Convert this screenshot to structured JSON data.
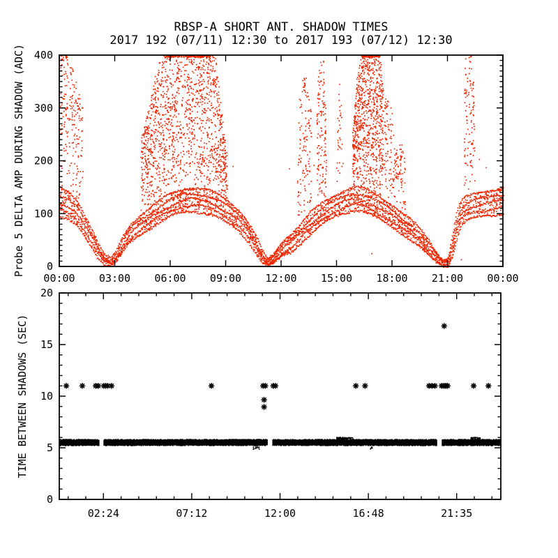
{
  "title": {
    "line1": "RBSP-A SHORT ANT. SHADOW TIMES",
    "line2": "2017 192 (07/11) 12:30 to 2017 193 (07/12) 12:30"
  },
  "colors": {
    "scatter_red": "#ee2500",
    "marker_black": "#000000",
    "axis": "#000000",
    "background": "#ffffff"
  },
  "chart_data": [
    {
      "type": "scatter",
      "panel": "top",
      "ylabel": "Probe 5 DELTA AMP DURING SHADOW (ADC)",
      "xlim_hours": [
        0,
        24
      ],
      "ylim": [
        0,
        400
      ],
      "x_major_ticks": [
        0,
        3,
        6,
        9,
        12,
        15,
        18,
        21,
        24
      ],
      "x_tick_labels": [
        "00:00",
        "03:00",
        "06:00",
        "09:00",
        "12:00",
        "15:00",
        "18:00",
        "21:00",
        "00:00"
      ],
      "y_major_ticks": [
        0,
        100,
        200,
        300,
        400
      ],
      "y_tick_labels": [
        "0",
        "100",
        "200",
        "300",
        "400"
      ],
      "y_minor_step": 10,
      "point_color": "#ee2500",
      "band_envelope": [
        [
          0.0,
          95,
          148
        ],
        [
          0.5,
          88,
          140
        ],
        [
          0.9,
          78,
          126
        ],
        [
          1.2,
          66,
          110
        ],
        [
          1.45,
          52,
          92
        ],
        [
          1.8,
          34,
          68
        ],
        [
          2.1,
          16,
          44
        ],
        [
          2.45,
          4,
          22
        ],
        [
          2.75,
          2,
          14
        ],
        [
          3.0,
          8,
          26
        ],
        [
          3.4,
          26,
          56
        ],
        [
          3.8,
          46,
          80
        ],
        [
          4.2,
          58,
          94
        ],
        [
          4.7,
          70,
          108
        ],
        [
          5.2,
          80,
          120
        ],
        [
          5.7,
          90,
          132
        ],
        [
          6.2,
          98,
          142
        ],
        [
          6.7,
          104,
          148
        ],
        [
          7.2,
          106,
          150
        ],
        [
          7.7,
          104,
          148
        ],
        [
          8.2,
          99,
          143
        ],
        [
          8.7,
          90,
          134
        ],
        [
          9.2,
          80,
          122
        ],
        [
          9.7,
          68,
          108
        ],
        [
          10.2,
          48,
          85
        ],
        [
          10.6,
          28,
          60
        ],
        [
          10.95,
          8,
          30
        ],
        [
          11.25,
          1,
          14
        ],
        [
          11.5,
          5,
          22
        ],
        [
          11.85,
          14,
          38
        ],
        [
          12.2,
          24,
          55
        ],
        [
          12.5,
          28,
          62
        ],
        [
          13.0,
          45,
          80
        ],
        [
          13.5,
          60,
          100
        ],
        [
          14.0,
          75,
          115
        ],
        [
          14.5,
          88,
          128
        ],
        [
          15.0,
          97,
          138
        ],
        [
          15.5,
          104,
          147
        ],
        [
          16.0,
          108,
          151
        ],
        [
          16.4,
          105,
          148
        ],
        [
          16.9,
          97,
          140
        ],
        [
          17.4,
          88,
          131
        ],
        [
          17.9,
          78,
          120
        ],
        [
          18.4,
          66,
          106
        ],
        [
          18.9,
          54,
          92
        ],
        [
          19.4,
          40,
          75
        ],
        [
          19.9,
          24,
          54
        ],
        [
          20.3,
          10,
          32
        ],
        [
          20.7,
          2,
          14
        ],
        [
          21.0,
          2,
          16
        ],
        [
          21.25,
          20,
          60
        ],
        [
          21.5,
          55,
          105
        ],
        [
          21.75,
          80,
          125
        ],
        [
          22.0,
          88,
          132
        ],
        [
          22.4,
          92,
          138
        ],
        [
          22.8,
          95,
          142
        ],
        [
          23.4,
          98,
          146
        ],
        [
          24.0,
          102,
          150
        ]
      ],
      "band_strands": 5,
      "band_fill_points": 1500,
      "plumes": [
        {
          "envelope": [
            [
              0.0,
              430
            ],
            [
              0.35,
              420
            ],
            [
              0.7,
              380
            ],
            [
              1.0,
              340
            ],
            [
              1.25,
              300
            ]
          ],
          "n": 210
        },
        {
          "envelope": [
            [
              4.4,
              240
            ],
            [
              4.8,
              300
            ],
            [
              5.3,
              380
            ],
            [
              5.8,
              425
            ],
            [
              6.3,
              432
            ],
            [
              7.0,
              432
            ],
            [
              7.6,
              432
            ],
            [
              8.1,
              428
            ],
            [
              8.45,
              400
            ],
            [
              8.7,
              310
            ],
            [
              9.05,
              215
            ]
          ],
          "n": 1500
        },
        {
          "envelope": [
            [
              12.85,
              250
            ],
            [
              13.05,
              350
            ],
            [
              13.35,
              368
            ],
            [
              13.6,
              290
            ]
          ],
          "n": 130
        },
        {
          "envelope": [
            [
              13.9,
              290
            ],
            [
              14.05,
              400
            ],
            [
              14.28,
              402
            ],
            [
              14.42,
              280
            ]
          ],
          "n": 140
        },
        {
          "envelope": [
            [
              14.98,
              200
            ],
            [
              15.12,
              375
            ],
            [
              15.3,
              260
            ]
          ],
          "n": 35
        },
        {
          "envelope": [
            [
              15.85,
              250
            ],
            [
              16.1,
              360
            ],
            [
              16.35,
              420
            ],
            [
              16.7,
              432
            ],
            [
              17.1,
              430
            ],
            [
              17.3,
              415
            ],
            [
              17.5,
              330
            ]
          ],
          "n": 900
        },
        {
          "envelope": [
            [
              17.55,
              320
            ],
            [
              17.85,
              320
            ],
            [
              18.15,
              245
            ],
            [
              18.35,
              195
            ]
          ],
          "n": 120
        },
        {
          "envelope": [
            [
              18.35,
              235
            ],
            [
              18.5,
              240
            ],
            [
              18.68,
              195
            ]
          ],
          "n": 45
        },
        {
          "envelope": [
            [
              21.88,
              330
            ],
            [
              21.98,
              415
            ],
            [
              22.28,
              408
            ],
            [
              22.45,
              320
            ]
          ],
          "n": 110
        }
      ],
      "stray_points": [
        [
          0.5,
          235
        ],
        [
          9.35,
          190
        ],
        [
          12.42,
          186
        ],
        [
          13.75,
          192
        ],
        [
          16.9,
          25
        ],
        [
          21.7,
          14
        ],
        [
          22.68,
          204
        ],
        [
          23.05,
          188
        ]
      ]
    },
    {
      "type": "scatter",
      "panel": "bottom",
      "ylabel": "TIME BETWEEN SHADOWS (SEC)",
      "xlim_hours": [
        0,
        24
      ],
      "ylim": [
        0,
        20
      ],
      "x_major_ticks": [
        2.4,
        7.2,
        12.0,
        16.8,
        21.6
      ],
      "x_tick_labels": [
        "02:24",
        "07:12",
        "12:00",
        "16:48",
        "21:35"
      ],
      "x_minor_step": 0.96,
      "y_major_ticks": [
        0,
        5,
        10,
        15,
        20
      ],
      "y_tick_labels": [
        "0",
        "5",
        "10",
        "15",
        "20"
      ],
      "y_minor_step": 1,
      "marker": "asterisk",
      "band": {
        "v_low": 5.2,
        "v_high": 5.82,
        "t_start": 0.0,
        "t_end": 24.0,
        "gaps": [
          [
            2.16,
            2.38
          ],
          [
            11.3,
            11.55
          ],
          [
            20.5,
            20.78
          ]
        ]
      },
      "band_speckle_above": [
        [
          15.05,
          15.95
        ],
        [
          22.35,
          22.85
        ]
      ],
      "band_speckle_below": [
        [
          10.5,
          10.85
        ],
        [
          16.85,
          17.0
        ]
      ],
      "asterisk_points": [
        [
          0.38,
          11.0
        ],
        [
          1.25,
          11.0
        ],
        [
          1.98,
          11.0
        ],
        [
          2.12,
          11.0
        ],
        [
          2.42,
          11.0
        ],
        [
          2.52,
          11.0
        ],
        [
          2.63,
          11.0
        ],
        [
          2.84,
          11.0
        ],
        [
          8.27,
          11.0
        ],
        [
          11.08,
          11.0
        ],
        [
          11.2,
          11.0
        ],
        [
          11.13,
          9.65
        ],
        [
          11.13,
          8.95
        ],
        [
          11.63,
          11.0
        ],
        [
          11.75,
          11.0
        ],
        [
          16.12,
          11.0
        ],
        [
          16.62,
          11.0
        ],
        [
          20.1,
          11.0
        ],
        [
          20.26,
          11.0
        ],
        [
          20.42,
          11.0
        ],
        [
          20.78,
          11.0
        ],
        [
          20.87,
          11.0
        ],
        [
          20.95,
          11.0
        ],
        [
          21.03,
          11.0
        ],
        [
          21.11,
          11.0
        ],
        [
          20.92,
          16.8
        ],
        [
          22.52,
          11.0
        ],
        [
          23.33,
          11.0
        ]
      ]
    }
  ]
}
